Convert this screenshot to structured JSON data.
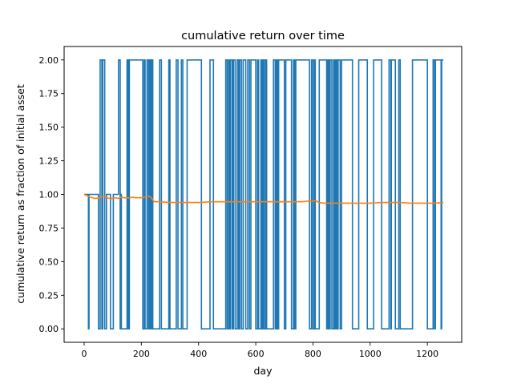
{
  "chart_data": {
    "type": "line",
    "title": "cumulative return over time",
    "xlabel": "day",
    "ylabel": "cumulative return as fraction of initial asset",
    "xlim": [
      -70,
      1320
    ],
    "ylim": [
      -0.1,
      2.1
    ],
    "xticks": [
      0,
      200,
      400,
      600,
      800,
      1000,
      1200
    ],
    "xtick_labels": [
      "0",
      "200",
      "400",
      "600",
      "800",
      "1000",
      "1200"
    ],
    "yticks": [
      0.0,
      0.25,
      0.5,
      0.75,
      1.0,
      1.25,
      1.5,
      1.75,
      2.0
    ],
    "ytick_labels": [
      "0.00",
      "0.25",
      "0.50",
      "0.75",
      "1.00",
      "1.25",
      "1.50",
      "1.75",
      "2.00"
    ],
    "grid": false,
    "legend": "none",
    "series": [
      {
        "color": "#1f77b4",
        "style": "step",
        "x": [
          0,
          15,
          15,
          17,
          17,
          50,
          50,
          56,
          56,
          62,
          62,
          65,
          65,
          72,
          72,
          78,
          78,
          92,
          92,
          102,
          102,
          120,
          120,
          126,
          126,
          128,
          128,
          130,
          130,
          150,
          150,
          154,
          154,
          158,
          158,
          205,
          205,
          210,
          210,
          213,
          213,
          220,
          220,
          225,
          225,
          228,
          228,
          232,
          232,
          236,
          236,
          240,
          240,
          264,
          264,
          270,
          270,
          296,
          296,
          300,
          300,
          322,
          322,
          328,
          328,
          340,
          340,
          345,
          345,
          360,
          360,
          410,
          410,
          440,
          440,
          452,
          452,
          495,
          495,
          500,
          500,
          505,
          505,
          508,
          508,
          512,
          512,
          518,
          518,
          522,
          522,
          528,
          528,
          535,
          535,
          540,
          540,
          544,
          544,
          550,
          550,
          556,
          556,
          565,
          565,
          572,
          572,
          578,
          578,
          583,
          583,
          600,
          600,
          606,
          606,
          610,
          610,
          618,
          618,
          622,
          622,
          626,
          626,
          630,
          630,
          635,
          635,
          638,
          638,
          662,
          662,
          668,
          668,
          672,
          672,
          676,
          676,
          680,
          680,
          700,
          700,
          705,
          705,
          725,
          725,
          732,
          732,
          736,
          736,
          740,
          740,
          788,
          788,
          795,
          795,
          800,
          800,
          805,
          805,
          808,
          808,
          822,
          822,
          848,
          848,
          852,
          852,
          856,
          856,
          860,
          860,
          866,
          866,
          872,
          872,
          876,
          876,
          880,
          880,
          884,
          884,
          888,
          888,
          895,
          895,
          900,
          900,
          938,
          938,
          960,
          960,
          990,
          990,
          1012,
          1012,
          1040,
          1040,
          1066,
          1066,
          1072,
          1072,
          1074,
          1074,
          1088,
          1088,
          1100,
          1100,
          1105,
          1105,
          1148,
          1148,
          1200,
          1200,
          1220,
          1220,
          1225,
          1225,
          1228,
          1228,
          1248,
          1248,
          1250,
          1250,
          1256
        ],
        "y": [
          1,
          1,
          0,
          0,
          1,
          1,
          0,
          0,
          2,
          2,
          0,
          0,
          2,
          2,
          0,
          0,
          1,
          1,
          0,
          0,
          1,
          1,
          2,
          2,
          0,
          0,
          1,
          1,
          0,
          0,
          2,
          2,
          0,
          0,
          2,
          2,
          0,
          0,
          2,
          2,
          0,
          0,
          2,
          2,
          0,
          0,
          2,
          2,
          0,
          0,
          2,
          2,
          0,
          0,
          2,
          2,
          0,
          0,
          2,
          2,
          0,
          0,
          2,
          2,
          0,
          0,
          2,
          2,
          0,
          0,
          2,
          2,
          0,
          0,
          2,
          2,
          0,
          0,
          2,
          2,
          0,
          0,
          2,
          2,
          0,
          0,
          2,
          2,
          0,
          0,
          2,
          2,
          0,
          0,
          2,
          2,
          0,
          0,
          2,
          2,
          0,
          0,
          2,
          2,
          0,
          0,
          2,
          2,
          0,
          0,
          2,
          2,
          0,
          0,
          2,
          2,
          0,
          0,
          2,
          2,
          0,
          0,
          2,
          2,
          0,
          0,
          2,
          2,
          0,
          0,
          2,
          2,
          0,
          0,
          2,
          2,
          0,
          0,
          2,
          2,
          0,
          0,
          2,
          2,
          0,
          0,
          2,
          2,
          0,
          0,
          2,
          2,
          0,
          0,
          2,
          2,
          0,
          0,
          2,
          2,
          0,
          0,
          2,
          2,
          0,
          0,
          2,
          2,
          0,
          0,
          2,
          2,
          0,
          0,
          2,
          2,
          0,
          0,
          2,
          2,
          0,
          0,
          2,
          2,
          0,
          0,
          2,
          2,
          0,
          0,
          2,
          2,
          0,
          0,
          2,
          2,
          0,
          0,
          2,
          2,
          0,
          0,
          2,
          2,
          0,
          0,
          2,
          2,
          0,
          0,
          2,
          2,
          0,
          0,
          2,
          2,
          0,
          0,
          2,
          2,
          0,
          0,
          2,
          2
        ]
      },
      {
        "color": "#ff7f0e",
        "style": "line",
        "x": [
          0,
          20,
          40,
          60,
          70,
          80,
          90,
          100,
          110,
          120,
          130,
          140,
          150,
          160,
          170,
          180,
          190,
          200,
          210,
          220,
          230,
          240,
          245,
          260,
          300,
          350,
          400,
          440,
          460,
          480,
          500,
          520,
          560,
          600,
          640,
          680,
          720,
          760,
          780,
          800,
          810,
          820,
          840,
          860,
          880,
          900,
          940,
          960,
          1000,
          1040,
          1060,
          1080,
          1100,
          1140,
          1160,
          1200,
          1220,
          1256
        ],
        "y": [
          1.0,
          0.98,
          0.97,
          0.98,
          0.985,
          0.975,
          0.97,
          0.97,
          0.975,
          0.97,
          0.98,
          0.975,
          0.975,
          0.975,
          0.98,
          0.975,
          0.975,
          0.975,
          0.98,
          0.985,
          0.985,
          0.96,
          0.945,
          0.945,
          0.94,
          0.94,
          0.94,
          0.945,
          0.945,
          0.945,
          0.945,
          0.945,
          0.945,
          0.945,
          0.945,
          0.945,
          0.945,
          0.945,
          0.95,
          0.95,
          0.955,
          0.94,
          0.935,
          0.935,
          0.935,
          0.935,
          0.935,
          0.935,
          0.935,
          0.94,
          0.94,
          0.94,
          0.94,
          0.935,
          0.935,
          0.935,
          0.935,
          0.94
        ]
      }
    ]
  }
}
